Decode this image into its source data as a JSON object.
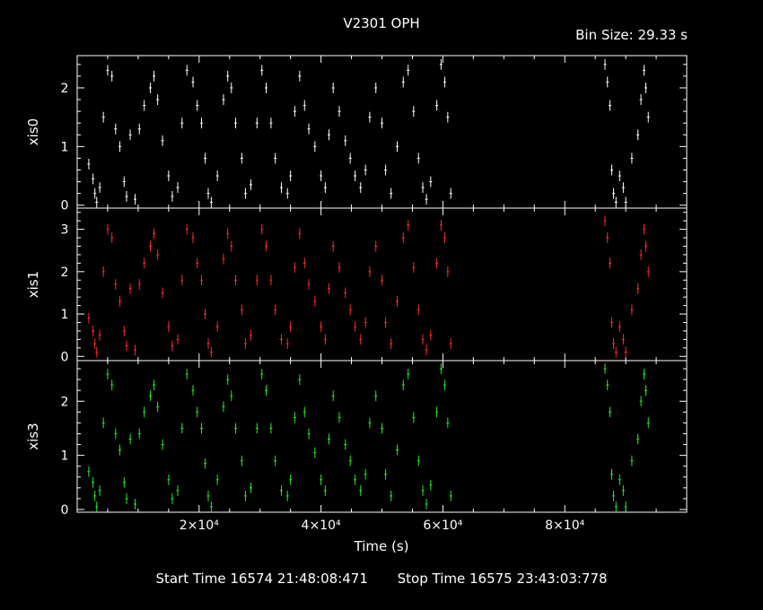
{
  "title": "V2301 OPH",
  "bin_size_label": "Bin Size: 29.33 s",
  "footer": {
    "start_label": "Start Time 16574 21:48:08:471",
    "stop_label": "Stop Time 16575 23:43:03:778"
  },
  "chart_data": {
    "type": "scatter",
    "title": "V2301 OPH",
    "xlabel": "Time (s)",
    "xlim": [
      0,
      100000
    ],
    "x_ticks": [
      20000,
      40000,
      60000,
      80000
    ],
    "x_tick_labels": [
      "2×10⁴",
      "4×10⁴",
      "6×10⁴",
      "8×10⁴"
    ],
    "colors": {
      "xis0": "#ffffff",
      "xis1": "#ff2a2a",
      "xis3": "#22ee22",
      "frame": "#ffffff",
      "background": "#000000"
    },
    "panels": [
      {
        "name": "xis0",
        "ylabel": "xis0",
        "ylim": [
          -0.05,
          2.55
        ],
        "yticks": [
          0,
          1,
          2
        ],
        "color": "#ffffff"
      },
      {
        "name": "xis1",
        "ylabel": "xis1",
        "ylim": [
          -0.1,
          3.5
        ],
        "yticks": [
          0,
          1,
          2,
          3
        ],
        "color": "#ff2a2a"
      },
      {
        "name": "xis3",
        "ylabel": "xis3",
        "ylim": [
          -0.05,
          2.75
        ],
        "yticks": [
          0,
          1,
          2
        ],
        "color": "#22ee22"
      }
    ],
    "series": [
      {
        "name": "xis0",
        "x": [
          1900,
          2600,
          2900,
          3200,
          3700,
          4300,
          5000,
          5700,
          6300,
          7000,
          7700,
          8100,
          8700,
          9500,
          10200,
          11000,
          12000,
          12600,
          13200,
          14000,
          15000,
          15600,
          16500,
          17200,
          18000,
          19000,
          19700,
          20400,
          21000,
          21500,
          22000,
          23000,
          24000,
          24700,
          25300,
          26000,
          27000,
          27600,
          28500,
          29500,
          30300,
          31000,
          31800,
          32500,
          33500,
          34500,
          35000,
          35700,
          36500,
          37300,
          38000,
          39000,
          40000,
          40700,
          41300,
          42000,
          43000,
          44000,
          44800,
          45600,
          46500,
          47300,
          48000,
          49000,
          50000,
          50600,
          51500,
          52500,
          53500,
          54300,
          55200,
          56000,
          56700,
          57300,
          58000,
          59000,
          59700,
          60300,
          60800,
          61300,
          86600,
          87000,
          87400,
          87700,
          88000,
          88400,
          89000,
          89600,
          90000,
          91000,
          92000,
          92500,
          93000,
          93300,
          93700
        ],
        "y": [
          0.7,
          0.45,
          0.2,
          0.05,
          0.3,
          1.5,
          2.3,
          2.2,
          1.3,
          1.0,
          0.4,
          0.15,
          1.2,
          0.1,
          1.3,
          1.7,
          2.0,
          2.2,
          1.8,
          1.1,
          0.5,
          0.15,
          0.3,
          1.4,
          2.3,
          2.1,
          1.7,
          1.4,
          0.8,
          0.2,
          0.05,
          0.5,
          1.8,
          2.2,
          2.0,
          1.4,
          0.8,
          0.2,
          0.35,
          1.4,
          2.3,
          2.0,
          1.4,
          0.8,
          0.3,
          0.2,
          0.5,
          1.6,
          2.2,
          1.7,
          1.3,
          1.0,
          0.5,
          0.3,
          1.2,
          2.0,
          1.6,
          1.1,
          0.8,
          0.5,
          0.3,
          0.6,
          1.5,
          2.0,
          1.4,
          0.6,
          0.2,
          1.0,
          2.1,
          2.3,
          1.6,
          0.8,
          0.3,
          0.1,
          0.4,
          1.7,
          2.4,
          2.1,
          1.5,
          0.2,
          2.4,
          2.1,
          1.7,
          0.6,
          0.2,
          0.05,
          0.5,
          0.3,
          0.05,
          0.8,
          1.2,
          1.8,
          2.3,
          2.0,
          1.5
        ]
      },
      {
        "name": "xis1",
        "x": [
          1900,
          2600,
          2900,
          3200,
          3700,
          4300,
          5000,
          5700,
          6300,
          7000,
          7700,
          8100,
          8700,
          9500,
          10200,
          11000,
          12000,
          12600,
          13200,
          14000,
          15000,
          15600,
          16500,
          17200,
          18000,
          19000,
          19700,
          20400,
          21000,
          21500,
          22000,
          23000,
          24000,
          24700,
          25300,
          26000,
          27000,
          27600,
          28500,
          29500,
          30300,
          31000,
          31800,
          32500,
          33500,
          34500,
          35000,
          35700,
          36500,
          37300,
          38000,
          39000,
          40000,
          40700,
          41300,
          42000,
          43000,
          44000,
          44800,
          45600,
          46500,
          47300,
          48000,
          49000,
          50000,
          50600,
          51500,
          52500,
          53500,
          54300,
          55200,
          56000,
          56700,
          57300,
          58000,
          59000,
          59700,
          60300,
          60800,
          61300,
          86600,
          87000,
          87400,
          87700,
          88000,
          88400,
          89000,
          89600,
          90000,
          91000,
          92000,
          92500,
          93000,
          93300,
          93700
        ],
        "y": [
          0.9,
          0.6,
          0.3,
          0.1,
          0.5,
          2.0,
          3.0,
          2.8,
          1.7,
          1.3,
          0.6,
          0.25,
          1.6,
          0.15,
          1.7,
          2.2,
          2.6,
          2.9,
          2.4,
          1.5,
          0.7,
          0.25,
          0.4,
          1.8,
          3.0,
          2.8,
          2.2,
          1.8,
          1.0,
          0.3,
          0.1,
          0.7,
          2.3,
          2.9,
          2.6,
          1.8,
          1.1,
          0.3,
          0.5,
          1.8,
          3.0,
          2.6,
          1.8,
          1.1,
          0.4,
          0.3,
          0.7,
          2.1,
          2.9,
          2.2,
          1.7,
          1.3,
          0.7,
          0.4,
          1.6,
          2.6,
          2.1,
          1.5,
          1.1,
          0.7,
          0.4,
          0.8,
          2.0,
          2.6,
          1.8,
          0.8,
          0.3,
          1.3,
          2.8,
          3.1,
          2.1,
          1.1,
          0.4,
          0.15,
          0.5,
          2.2,
          3.1,
          2.8,
          2.0,
          0.3,
          3.2,
          2.8,
          2.2,
          0.8,
          0.3,
          0.1,
          0.7,
          0.4,
          0.1,
          1.1,
          1.6,
          2.4,
          3.0,
          2.6,
          2.0
        ]
      },
      {
        "name": "xis3",
        "x": [
          1900,
          2600,
          2900,
          3200,
          3700,
          4300,
          5000,
          5700,
          6300,
          7000,
          7700,
          8100,
          8700,
          9500,
          10200,
          11000,
          12000,
          12600,
          13200,
          14000,
          15000,
          15600,
          16500,
          17200,
          18000,
          19000,
          19700,
          20400,
          21000,
          21500,
          22000,
          23000,
          24000,
          24700,
          25300,
          26000,
          27000,
          27600,
          28500,
          29500,
          30300,
          31000,
          31800,
          32500,
          33500,
          34500,
          35000,
          35700,
          36500,
          37300,
          38000,
          39000,
          40000,
          40700,
          41300,
          42000,
          43000,
          44000,
          44800,
          45600,
          46500,
          47300,
          48000,
          49000,
          50000,
          50600,
          51500,
          52500,
          53500,
          54300,
          55200,
          56000,
          56700,
          57300,
          58000,
          59000,
          59700,
          60300,
          60800,
          61300,
          86600,
          87000,
          87400,
          87700,
          88000,
          88400,
          89000,
          89600,
          90000,
          91000,
          92000,
          92500,
          93000,
          93300,
          93700
        ],
        "y": [
          0.7,
          0.5,
          0.25,
          0.05,
          0.35,
          1.6,
          2.5,
          2.3,
          1.4,
          1.1,
          0.5,
          0.2,
          1.3,
          0.1,
          1.4,
          1.8,
          2.1,
          2.3,
          1.9,
          1.2,
          0.55,
          0.2,
          0.35,
          1.5,
          2.5,
          2.2,
          1.8,
          1.5,
          0.85,
          0.25,
          0.05,
          0.55,
          1.9,
          2.4,
          2.1,
          1.5,
          0.9,
          0.25,
          0.4,
          1.5,
          2.5,
          2.2,
          1.5,
          0.9,
          0.35,
          0.25,
          0.55,
          1.7,
          2.4,
          1.8,
          1.4,
          1.05,
          0.55,
          0.35,
          1.3,
          2.1,
          1.7,
          1.2,
          0.9,
          0.55,
          0.35,
          0.65,
          1.6,
          2.1,
          1.5,
          0.65,
          0.25,
          1.1,
          2.3,
          2.5,
          1.7,
          0.9,
          0.35,
          0.1,
          0.45,
          1.8,
          2.6,
          2.3,
          1.6,
          0.25,
          2.6,
          2.3,
          1.8,
          0.65,
          0.25,
          0.05,
          0.55,
          0.35,
          0.05,
          0.9,
          1.3,
          2.0,
          2.5,
          2.2,
          1.6
        ]
      }
    ]
  }
}
